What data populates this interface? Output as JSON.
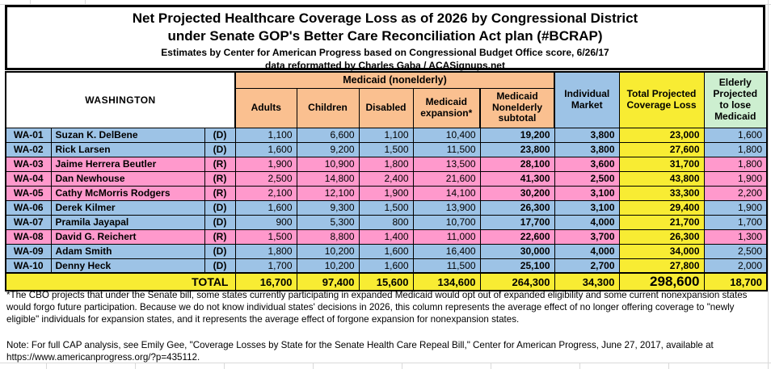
{
  "title": {
    "lines": [
      "Net Projected Healthcare Coverage Loss as of 2026 by Congressional District",
      "under Senate GOP's Better Care Reconciliation Act plan (#BCRAP)",
      "Estimates by Center for American Progress based on Congressional Budget Office score, 6/26/17",
      "data reformatted by Charles Gaba / ACASignups.net"
    ]
  },
  "table": {
    "state": "WASHINGTON",
    "medicaid_group_label": "Medicaid (nonelderly)",
    "sub_columns": [
      "Adults",
      "Children",
      "Disabled",
      "Medicaid expansion*",
      "Medicaid Nonelderly subtotal"
    ],
    "right_columns": [
      "Individual Market",
      "Total Projected Coverage Loss",
      "Elderly Projected to lose Medicaid"
    ],
    "total_label": "TOTAL",
    "rows": [
      {
        "district": "WA-01",
        "name": "Suzan K. DelBene",
        "party": "(D)",
        "values": [
          "1,100",
          "6,600",
          "1,100",
          "10,400",
          "19,200",
          "3,800",
          "23,000",
          "1,600"
        ]
      },
      {
        "district": "WA-02",
        "name": "Rick Larsen",
        "party": "(D)",
        "values": [
          "1,600",
          "9,200",
          "1,500",
          "11,500",
          "23,800",
          "3,800",
          "27,600",
          "1,800"
        ]
      },
      {
        "district": "WA-03",
        "name": "Jaime Herrera Beutler",
        "party": "(R)",
        "values": [
          "1,900",
          "10,900",
          "1,800",
          "13,500",
          "28,100",
          "3,600",
          "31,700",
          "1,800"
        ]
      },
      {
        "district": "WA-04",
        "name": "Dan Newhouse",
        "party": "(R)",
        "values": [
          "2,500",
          "14,800",
          "2,400",
          "21,600",
          "41,300",
          "2,500",
          "43,800",
          "1,900"
        ]
      },
      {
        "district": "WA-05",
        "name": "Cathy McMorris Rodgers",
        "party": "(R)",
        "values": [
          "2,100",
          "12,100",
          "1,900",
          "14,100",
          "30,200",
          "3,100",
          "33,300",
          "2,200"
        ]
      },
      {
        "district": "WA-06",
        "name": "Derek Kilmer",
        "party": "(D)",
        "values": [
          "1,600",
          "9,300",
          "1,500",
          "13,900",
          "26,300",
          "3,100",
          "29,400",
          "1,900"
        ]
      },
      {
        "district": "WA-07",
        "name": "Pramila Jayapal",
        "party": "(D)",
        "values": [
          "900",
          "5,300",
          "800",
          "10,700",
          "17,700",
          "4,000",
          "21,700",
          "1,700"
        ]
      },
      {
        "district": "WA-08",
        "name": "David G. Reichert",
        "party": "(R)",
        "values": [
          "1,500",
          "8,800",
          "1,400",
          "11,000",
          "22,600",
          "3,700",
          "26,300",
          "1,300"
        ]
      },
      {
        "district": "WA-09",
        "name": "Adam Smith",
        "party": "(D)",
        "values": [
          "1,800",
          "10,200",
          "1,600",
          "16,400",
          "30,000",
          "4,000",
          "34,000",
          "2,500"
        ]
      },
      {
        "district": "WA-10",
        "name": "Denny Heck",
        "party": "(D)",
        "values": [
          "1,700",
          "10,200",
          "1,600",
          "11,500",
          "25,100",
          "2,700",
          "27,800",
          "2,000"
        ]
      }
    ],
    "totals": [
      "16,700",
      "97,400",
      "15,600",
      "134,600",
      "264,300",
      "34,300",
      "298,600",
      "18,700"
    ]
  },
  "footnote": "*The CBO projects that under the Senate bill, some states currently participating in expanded Medicaid would opt out of expanded eligibility and some current nonexpansion states would forgo future participation. Because we do not know individual states' decisions in 2026, this column represents the average effect of no longer offering coverage to \"newly eligible\" individuals for expansion states, and it represents the average effect of forgone expansion for nonexpansion states.",
  "bottom_note": "Note: For full CAP analysis, see Emily Gee, \"Coverage Losses by State for the Senate Health Care Repeal Bill,\" Center for American Progress, June 27, 2017, available at https://www.americanprogress.org/?p=435112.",
  "colors": {
    "dem_row": "#9DC3E6",
    "rep_row": "#FF99CC",
    "medicaid_header": "#FAC090",
    "individual_header": "#9DC3E6",
    "total_column": "#F8EC33",
    "elderly_header": "#CDEFD0",
    "border": "#000000",
    "gridline": "#D9D9D9"
  }
}
